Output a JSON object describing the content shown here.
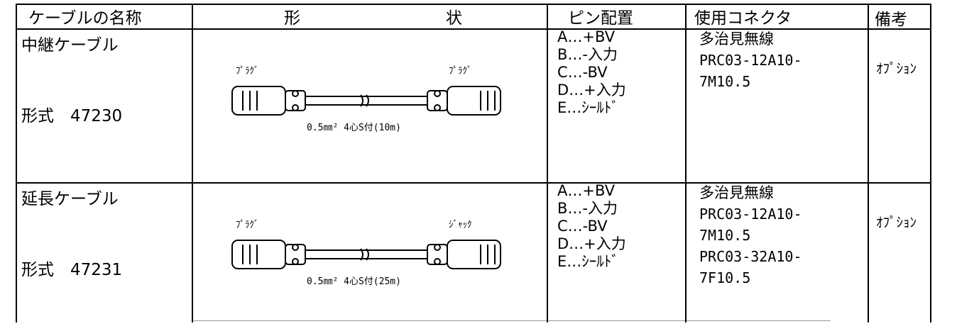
{
  "header": {
    "name": "ケーブルの名称",
    "shape_left": "形",
    "shape_right": "状",
    "pins": "ピン配置",
    "connector": "使用コネクタ",
    "remarks": "備考"
  },
  "rows": [
    {
      "name": "中継ケーブル",
      "model": "形式　47230",
      "left_label": "ﾌﾟﾗｸﾞ",
      "right_label": "ﾌﾟﾗｸﾞ",
      "caption": "0.5㎜² 4心S付(10m)",
      "pins": [
        "A…+BV",
        "B…-入力",
        "C…-BV",
        "D…+入力",
        "E…ｼｰﾙﾄﾞ"
      ],
      "connector": [
        "多治見無線",
        "PRC03-12A10-",
        "7M10.5"
      ],
      "remarks": "ｵﾌﾟｼｮﾝ"
    },
    {
      "name": "延長ケーブル",
      "model": "形式　47231",
      "left_label": "ﾌﾟﾗｸﾞ",
      "right_label": "ｼﾞｬｯｸ",
      "caption": "0.5㎜² 4心S付(25m)",
      "pins": [
        "A…+BV",
        "B…-入力",
        "C…-BV",
        "D…+入力",
        "E…ｼｰﾙﾄﾞ"
      ],
      "connector": [
        "多治見無線",
        "PRC03-12A10-",
        "7M10.5",
        "PRC03-32A10-",
        "7F10.5"
      ],
      "remarks": "ｵﾌﾟｼｮﾝ"
    }
  ]
}
